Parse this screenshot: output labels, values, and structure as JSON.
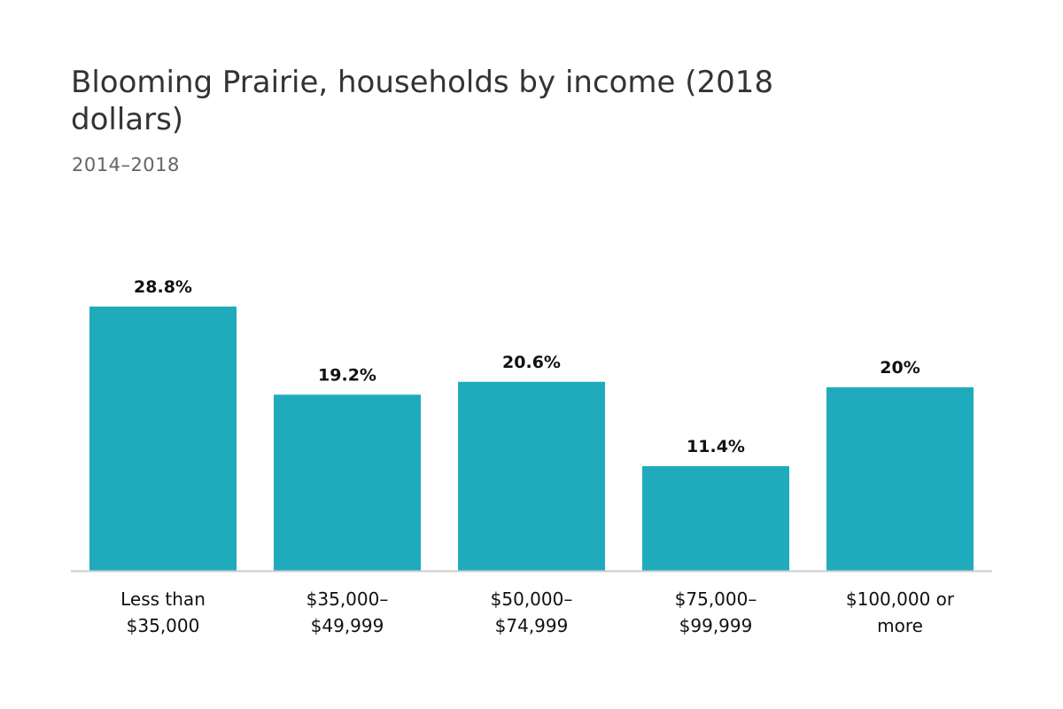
{
  "chart_data": {
    "type": "bar",
    "title": "Blooming Prairie, households by income (2018 dollars)",
    "subtitle": "2014–2018",
    "categories": [
      [
        "Less than",
        "$35,000"
      ],
      [
        "$35,000–",
        "$49,999"
      ],
      [
        "$50,000–",
        "$74,999"
      ],
      [
        "$75,000–",
        "$99,999"
      ],
      [
        "$100,000 or",
        "more"
      ]
    ],
    "values": [
      28.8,
      19.2,
      20.6,
      11.4,
      20
    ],
    "value_labels": [
      "28.8%",
      "19.2%",
      "20.6%",
      "11.4%",
      "20%"
    ],
    "ylim": [
      0,
      30
    ],
    "grid": false,
    "bar_color": "#20abbc",
    "baseline_color": "#cccccc"
  }
}
